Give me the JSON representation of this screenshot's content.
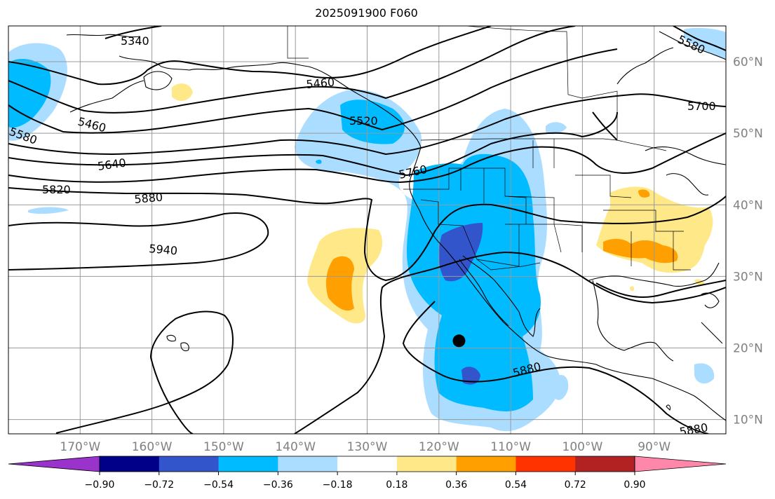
{
  "title": "2025091900 F060",
  "map": {
    "lon_ticks": [
      {
        "lon": -170,
        "label": "170°W"
      },
      {
        "lon": -160,
        "label": "160°W"
      },
      {
        "lon": -150,
        "label": "150°W"
      },
      {
        "lon": -140,
        "label": "140°W"
      },
      {
        "lon": -130,
        "label": "130°W"
      },
      {
        "lon": -120,
        "label": "120°W"
      },
      {
        "lon": -110,
        "label": "110°W"
      },
      {
        "lon": -100,
        "label": "100°W"
      },
      {
        "lon": -90,
        "label": "90°W"
      }
    ],
    "lat_ticks": [
      {
        "lat": 60,
        "label": "60°N"
      },
      {
        "lat": 50,
        "label": "50°N"
      },
      {
        "lat": 40,
        "label": "40°N"
      },
      {
        "lat": 30,
        "label": "30°N"
      },
      {
        "lat": 20,
        "label": "20°N"
      },
      {
        "lat": 10,
        "label": "10°N"
      }
    ],
    "extent": {
      "lon_min": -180,
      "lon_max": -80,
      "lat_min": 8,
      "lat_max": 65
    },
    "contour_labels": [
      "5340",
      "5460",
      "5520",
      "5460",
      "5580",
      "5640",
      "5580",
      "5700",
      "5760",
      "5820",
      "5880",
      "5940",
      "5880",
      "5880"
    ],
    "marker": {
      "lon": -117.2,
      "lat": 21
    }
  },
  "colorbar": {
    "colors": [
      "#9933cc",
      "#000088",
      "#3355cc",
      "#00bbff",
      "#aaddff",
      "#ffffff",
      "#ffe888",
      "#ffa000",
      "#ff3300",
      "#b22222",
      "#ff88aa"
    ],
    "tick_labels": [
      "−0.90",
      "−0.72",
      "−0.54",
      "−0.36",
      "−0.18",
      "0.18",
      "0.36",
      "0.54",
      "0.72",
      "0.90"
    ]
  }
}
